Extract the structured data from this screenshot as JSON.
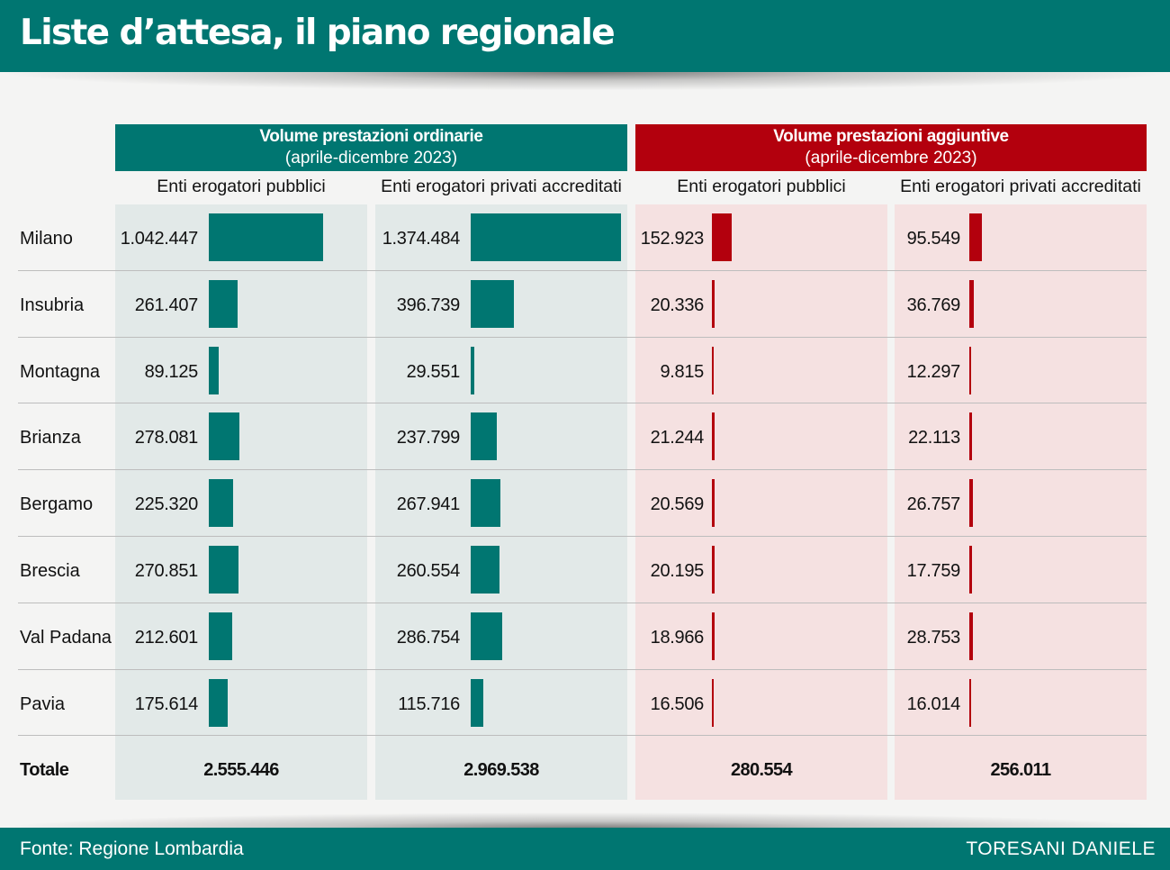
{
  "title": "Liste d’attesa, il piano regionale",
  "groups": [
    {
      "title": "Volume prestazioni ordinarie",
      "subtitle": "(aprile-dicembre 2023)",
      "color": "#007671"
    },
    {
      "title": "Volume prestazioni aggiuntive",
      "subtitle": "(aprile-dicembre 2023)",
      "color": "#b3000d"
    }
  ],
  "chart_data": {
    "type": "bar",
    "categories": [
      "Milano",
      "Insubria",
      "Montagna",
      "Brianza",
      "Bergamo",
      "Brescia",
      "Val Padana",
      "Pavia"
    ],
    "series": [
      {
        "group": "Volume prestazioni ordinarie",
        "name": "Enti erogatori pubblici",
        "color": "#007671",
        "values": [
          1042447,
          261407,
          89125,
          278081,
          225320,
          270851,
          212601,
          175614
        ],
        "labels": [
          "1.042.447",
          "261.407",
          "89.125",
          "278.081",
          "225.320",
          "270.851",
          "212.601",
          "175.614"
        ],
        "total": "2.555.446"
      },
      {
        "group": "Volume prestazioni ordinarie",
        "name": "Enti erogatori privati accreditati",
        "color": "#007671",
        "values": [
          1374484,
          396739,
          29551,
          237799,
          267941,
          260554,
          286754,
          115716
        ],
        "labels": [
          "1.374.484",
          "396.739",
          "29.551",
          "237.799",
          "267.941",
          "260.554",
          "286.754",
          "115.716"
        ],
        "total": "2.969.538"
      },
      {
        "group": "Volume prestazioni aggiuntive",
        "name": "Enti erogatori pubblici",
        "color": "#b3000d",
        "values": [
          152923,
          20336,
          9815,
          21244,
          20569,
          20195,
          18966,
          16506
        ],
        "labels": [
          "152.923",
          "20.336",
          "9.815",
          "21.244",
          "20.569",
          "20.195",
          "18.966",
          "16.506"
        ],
        "total": "280.554"
      },
      {
        "group": "Volume prestazioni aggiuntive",
        "name": "Enti erogatori privati accreditati",
        "color": "#b3000d",
        "values": [
          95549,
          36769,
          12297,
          22113,
          26757,
          17759,
          28753,
          16014
        ],
        "labels": [
          "95.549",
          "36.769",
          "12.297",
          "22.113",
          "26.757",
          "17.759",
          "28.753",
          "16.014"
        ],
        "total": "256.011"
      }
    ],
    "total_label": "Totale",
    "scale_max": 1374484
  },
  "footer": {
    "source": "Fonte: Regione Lombardia",
    "credit": "TORESANI DANIELE"
  }
}
